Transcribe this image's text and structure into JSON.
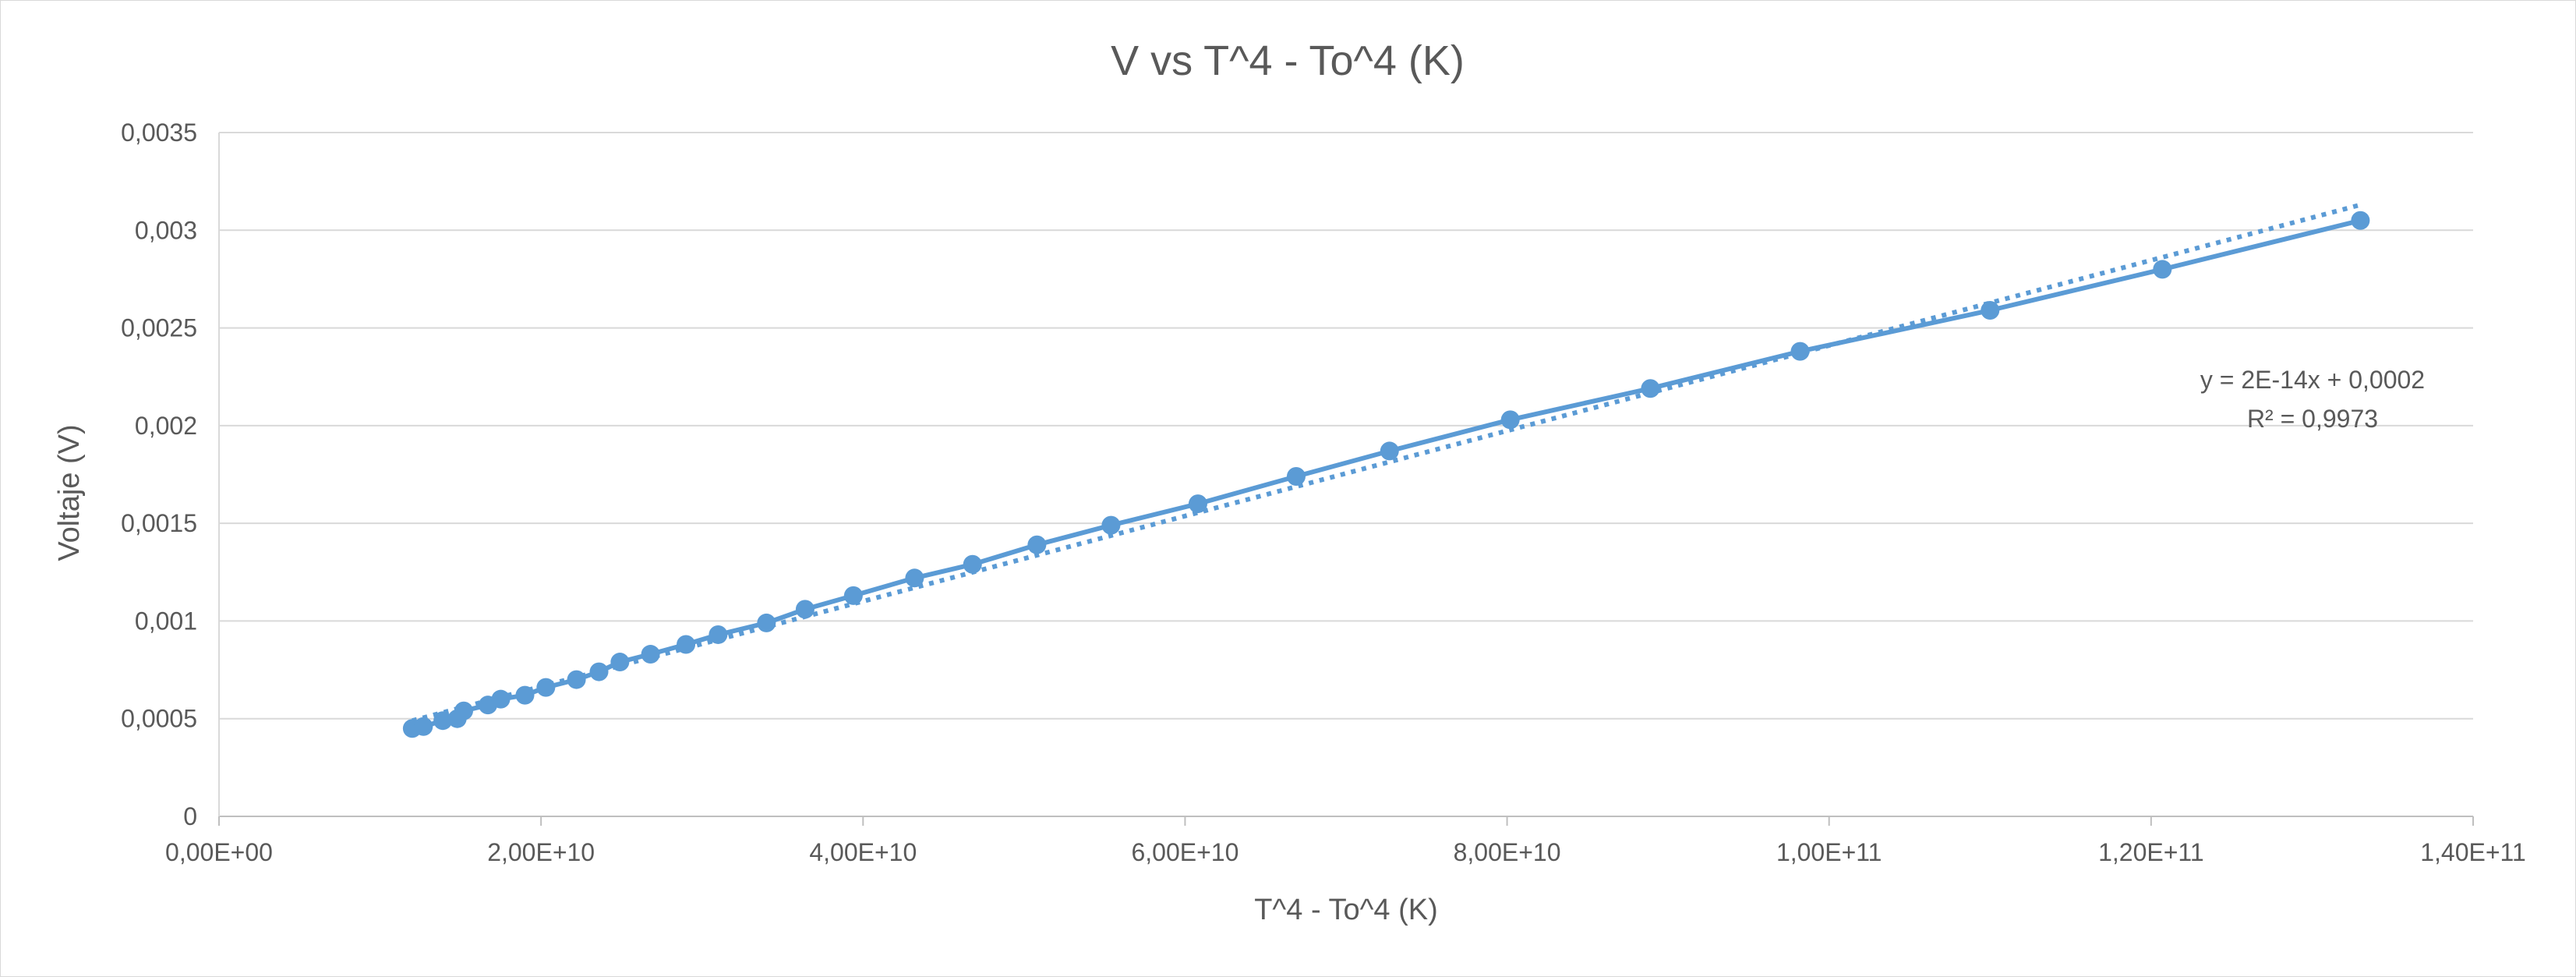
{
  "chart_data": {
    "type": "scatter",
    "title": "V vs T^4 - To^4 (K)",
    "xlabel": "T^4 - To^4 (K)",
    "ylabel": "Voltaje (V)",
    "xlim": [
      0,
      140000000000
    ],
    "ylim": [
      0,
      0.0035
    ],
    "x_ticks": [
      0,
      20000000000,
      40000000000,
      60000000000,
      80000000000,
      100000000000,
      120000000000,
      140000000000
    ],
    "x_tick_labels": [
      "0,00E+00",
      "2,00E+10",
      "4,00E+10",
      "6,00E+10",
      "8,00E+10",
      "1,00E+11",
      "1,20E+11",
      "1,40E+11"
    ],
    "y_ticks": [
      0,
      0.0005,
      0.001,
      0.0015,
      0.002,
      0.0025,
      0.003,
      0.0035
    ],
    "y_tick_labels": [
      "0",
      "0,0005",
      "0,001",
      "0,0015",
      "0,002",
      "0,0025",
      "0,003",
      "0,0035"
    ],
    "grid": "horizontal",
    "series_color": "#5b9bd5",
    "markers_connected": true,
    "x": [
      12000000000,
      12700000000,
      13900000000,
      14800000000,
      15200000000,
      16700000000,
      17500000000,
      19000000000,
      20300000000,
      22200000000,
      23600000000,
      24900000000,
      26800000000,
      29000000000,
      31000000000,
      34000000000,
      36400000000,
      39400000000,
      43200000000,
      46800000000,
      50800000000,
      55400000000,
      60800000000,
      66900000000,
      72700000000,
      80200000000,
      88900000000,
      98200000000,
      110000000000,
      120700000000,
      133000000000
    ],
    "y": [
      0.00045,
      0.00046,
      0.00049,
      0.0005,
      0.00054,
      0.00057,
      0.0006,
      0.00062,
      0.00066,
      0.0007,
      0.00074,
      0.00079,
      0.00083,
      0.00088,
      0.00093,
      0.00099,
      0.00106,
      0.00113,
      0.00122,
      0.00129,
      0.00139,
      0.00149,
      0.0016,
      0.00174,
      0.00187,
      0.00203,
      0.00219,
      0.00238,
      0.00259,
      0.0028,
      0.00305
    ],
    "trendline": {
      "type": "linear",
      "style": "dotted",
      "x_range": [
        12000000000,
        133000000000
      ],
      "y_range": [
        0.00049,
        0.00313
      ],
      "equation": "y = 2E-14x + 0,0002",
      "r_squared": "R² = 0,9973",
      "label_position": "right"
    }
  }
}
